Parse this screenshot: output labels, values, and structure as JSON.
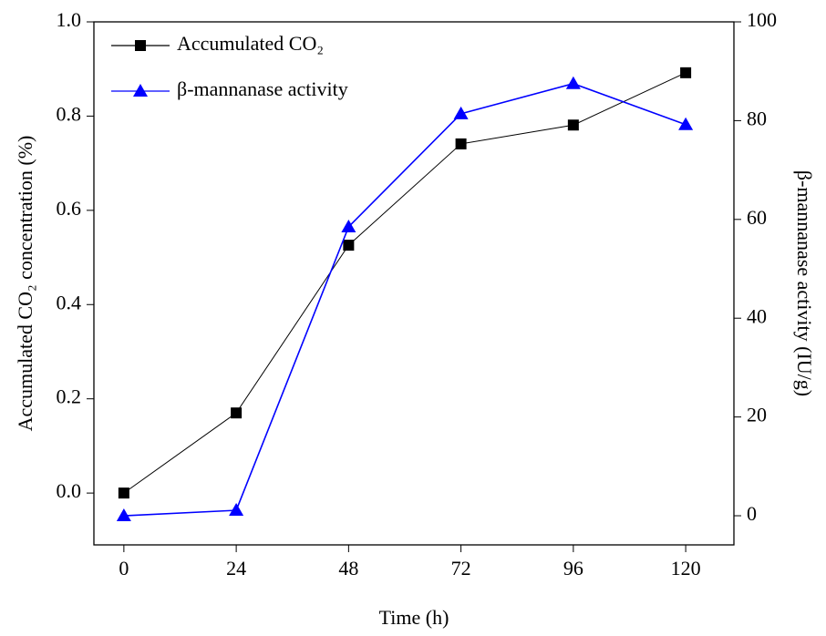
{
  "chart_data": {
    "type": "line",
    "x_label": "Time (h)",
    "y_label": "Accumulated CO₂ concentration (%)",
    "y2_label": "β-mannanase activity (IU/g)",
    "x": [
      0,
      24,
      48,
      72,
      96,
      120
    ],
    "xlim": [
      -6.4,
      130.3
    ],
    "xticks": [
      0,
      24,
      48,
      72,
      96,
      120
    ],
    "ylim": [
      -0.11,
      1.0
    ],
    "yticks": [
      {
        "value": 0,
        "label": "0.0"
      },
      0.2,
      0.4,
      0.6,
      0.8,
      {
        "value": 1,
        "label": "1.0"
      }
    ],
    "y2lim": [
      -5.9,
      100
    ],
    "y2ticks": [
      0,
      20,
      40,
      60,
      80,
      100
    ],
    "legend": "top-left",
    "series": [
      {
        "name": "Accumulated CO₂",
        "color": "#000000",
        "marker": "square",
        "axis": "y",
        "values": [
          0.0,
          0.17,
          0.526,
          0.741,
          0.781,
          0.892
        ]
      },
      {
        "name": "β-mannanase activity",
        "color": "#0000ff",
        "marker": "triangle",
        "axis": "y2",
        "values": [
          0,
          1.1,
          58.5,
          81.4,
          87.5,
          79.2
        ]
      }
    ]
  }
}
